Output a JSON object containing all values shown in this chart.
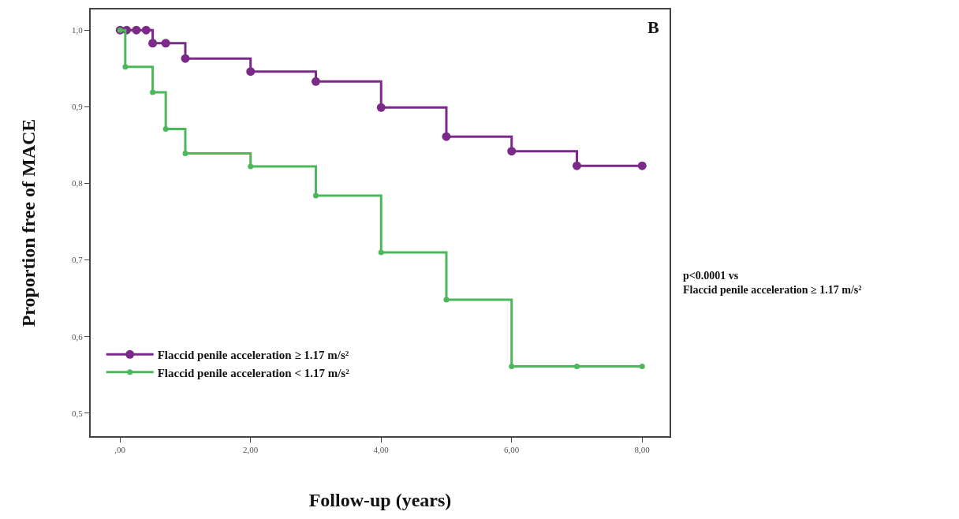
{
  "chart_data": {
    "type": "step",
    "xlabel": "Follow-up (years)",
    "ylabel": "Proportion free of MACE",
    "xlim": [
      -0.45,
      8.42
    ],
    "ylim": [
      0.47,
      1.027
    ],
    "xticks": [
      {
        "value": 0,
        "label": ",00"
      },
      {
        "value": 2,
        "label": "2,00"
      },
      {
        "value": 4,
        "label": "4,00"
      },
      {
        "value": 6,
        "label": "6,00"
      },
      {
        "value": 8,
        "label": "8,00"
      }
    ],
    "yticks": [
      {
        "value": 0.5,
        "label": "0,5"
      },
      {
        "value": 0.6,
        "label": "0,6"
      },
      {
        "value": 0.7,
        "label": "0,7"
      },
      {
        "value": 0.8,
        "label": "0,8"
      },
      {
        "value": 0.9,
        "label": "0,9"
      },
      {
        "value": 1.0,
        "label": "1,0"
      }
    ],
    "series": [
      {
        "name": "Flaccid penile acceleration ≥ 1.17 m/s²",
        "color": "#7b2a8a",
        "x": [
          0,
          0.1,
          0.25,
          0.4,
          0.5,
          0.7,
          1,
          2,
          3,
          4,
          5,
          6,
          7,
          8
        ],
        "values": [
          1,
          1,
          1,
          1,
          0.983,
          0.983,
          0.963,
          0.946,
          0.933,
          0.899,
          0.861,
          0.842,
          0.823,
          0.823
        ]
      },
      {
        "name": "Flaccid penile acceleration < 1.17 m/s²",
        "color": "#4cb85a",
        "x": [
          0,
          0.08,
          0.5,
          0.7,
          1,
          2,
          3,
          4,
          5,
          6,
          7,
          8
        ],
        "values": [
          1,
          0.952,
          0.919,
          0.871,
          0.839,
          0.822,
          0.784,
          0.71,
          0.648,
          0.561,
          0.561,
          0.561
        ]
      }
    ],
    "annotations": [
      "B",
      "p<0.0001 vs\nFlaccid penile acceleration ≥ 1.17 m/s²"
    ],
    "marker": "circle",
    "line_style": "solid",
    "legend": "bottom left"
  }
}
